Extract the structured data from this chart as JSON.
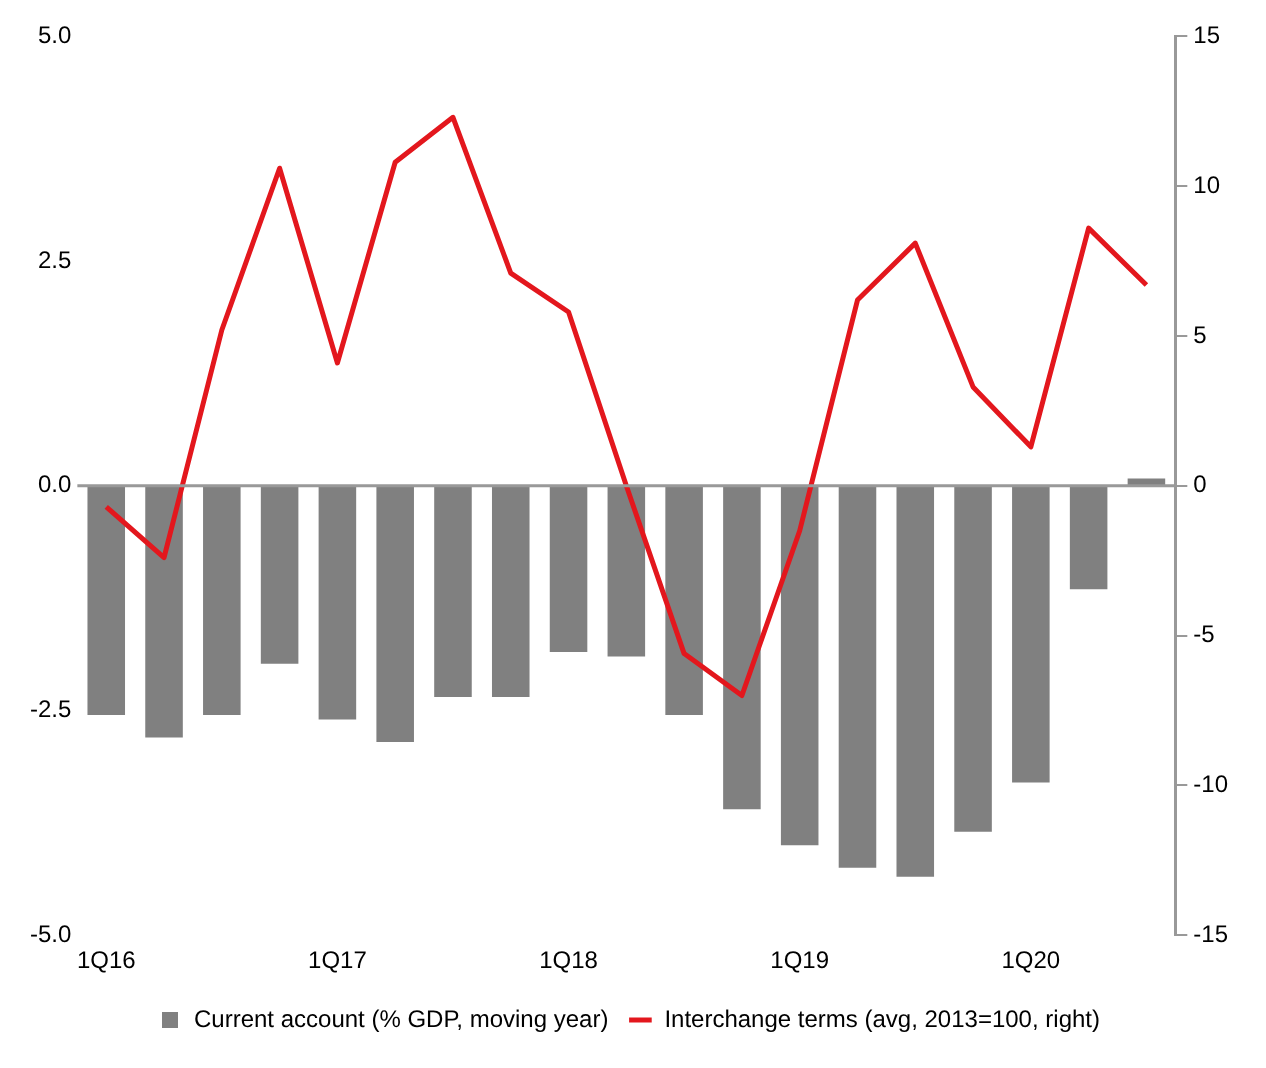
{
  "chart_data": {
    "type": "bar",
    "categories": [
      "1Q16",
      null,
      null,
      null,
      "1Q17",
      null,
      null,
      null,
      "1Q18",
      null,
      null,
      null,
      "1Q19",
      null,
      null,
      null,
      "1Q20",
      null,
      null
    ],
    "series": [
      {
        "name": "Current account (% GDP, moving year)",
        "color": "#808080",
        "values": [
          -2.55,
          -2.8,
          -2.55,
          -1.98,
          -2.6,
          -2.85,
          -2.35,
          -2.35,
          -1.85,
          -1.9,
          -2.55,
          -3.6,
          -4.0,
          -4.25,
          -4.35,
          -3.85,
          -3.3,
          -1.15,
          0.08
        ]
      },
      {
        "name": "Interchange terms (avg, 2013=100, right)",
        "type": "line",
        "axis": "y2",
        "color": "#e3171d",
        "values": [
          -0.7,
          -2.4,
          5.2,
          10.6,
          4.1,
          10.8,
          12.3,
          7.1,
          5.8,
          0,
          -5.6,
          -7,
          -1.5,
          6.2,
          8.1,
          3.3,
          1.3,
          8.6,
          6.7
        ]
      }
    ],
    "ylim": [
      -5,
      5
    ],
    "yticks": [
      {
        "value": 5,
        "label": "5.0"
      },
      {
        "value": 2.5,
        "label": "2.5"
      },
      {
        "value": 0,
        "label": "0.0"
      },
      {
        "value": -2.5,
        "label": "-2.5"
      },
      {
        "value": -5,
        "label": "-5.0"
      }
    ],
    "y2lim": [
      -15,
      15
    ],
    "y2ticks": [
      15,
      10,
      5,
      0,
      -5,
      -10,
      -15
    ],
    "ref_lines": [
      {
        "axis": "y",
        "value": 0,
        "color": "#999999"
      }
    ],
    "legend": "bottom",
    "grid": false,
    "marker": "none",
    "line_style": "solid"
  }
}
